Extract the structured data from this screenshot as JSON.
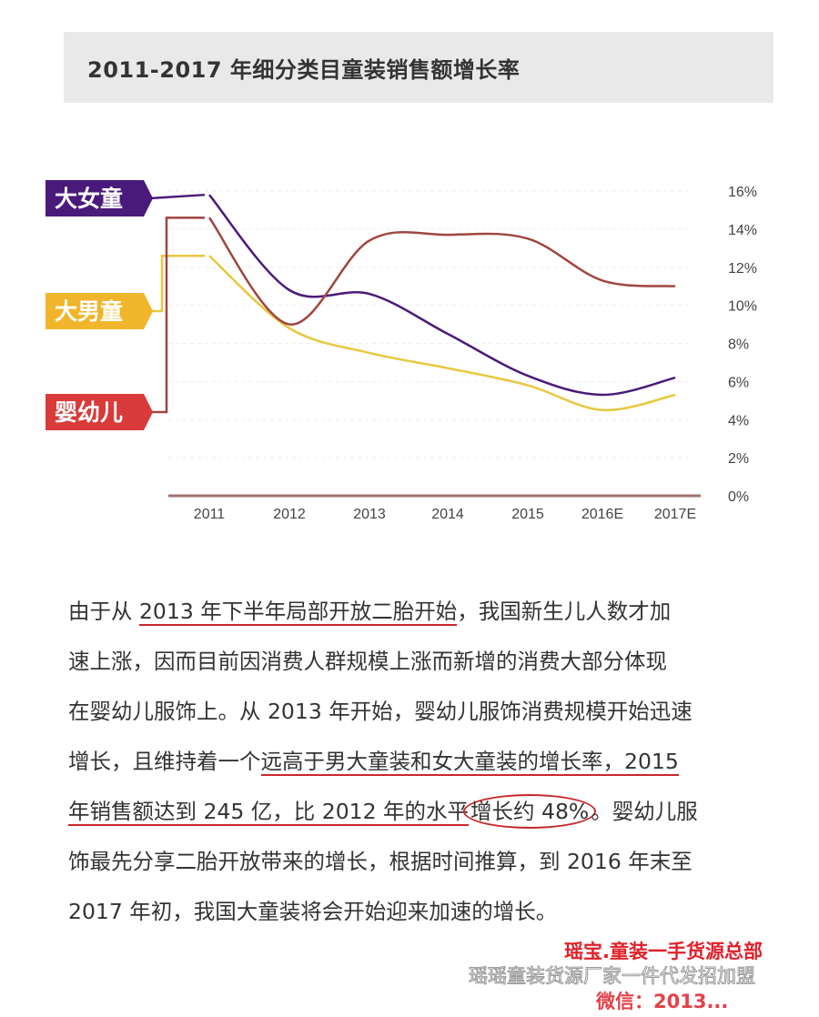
{
  "chart_data": {
    "type": "line",
    "title": "2011-2017 年细分类目童装销售额增长率",
    "xlabel": "",
    "ylabel": "",
    "categories": [
      "2011",
      "2012",
      "2013",
      "2014",
      "2015",
      "2016E",
      "2017E"
    ],
    "yticks": [
      "0%",
      "2%",
      "4%",
      "6%",
      "8%",
      "10%",
      "12%",
      "14%",
      "16%"
    ],
    "ylim": [
      0,
      16
    ],
    "legend_placement": "left",
    "series": [
      {
        "name": "大女童",
        "color": "#4b1a7a",
        "values": [
          15.8,
          10.8,
          10.6,
          8.5,
          6.3,
          5.3,
          6.2
        ]
      },
      {
        "name": "大男童",
        "color": "#e8c840",
        "values": [
          12.6,
          8.8,
          7.5,
          6.7,
          5.8,
          4.5,
          5.3
        ]
      },
      {
        "name": "婴幼儿",
        "color": "#a0453f",
        "values": [
          14.6,
          9.0,
          13.4,
          13.7,
          13.5,
          11.3,
          11.0
        ]
      }
    ],
    "label_colors": {
      "大女童": "#4a1a7a",
      "大男童": "#f0b52a",
      "婴幼儿": "#d93a3a"
    }
  },
  "paragraph": {
    "l1a": "由于从 ",
    "l1u": "2013 年下半年局部开放二胎开始",
    "l1b": "，我国新生儿人数才加",
    "l2": "速上涨，因而目前因消费人群规模上涨而新增的消费大部分体现",
    "l3": "在婴幼儿服饰上。从 2013 年开始，婴幼儿服饰消费规模开始迅速",
    "l4a": "增长，且维持着一个",
    "l4u": "远高于男大童装和女大童装的增长率，2015",
    "l5u": "年销售额达到 245 亿，比 2012 年的水平",
    "l5c": "增长约 48%",
    "l5b": "。婴幼儿服",
    "l6": "饰最先分享二胎开放带来的增长，根据时间推算，到 2016 年末至",
    "l7": "2017 年初，我国大童装将会开始迎来加速的增长。"
  },
  "watermark": {
    "line1": "瑶宝.童装一手货源总部",
    "line2": "瑶瑶童装货源厂家一件代发招加盟",
    "line3": "微信：2013..."
  }
}
